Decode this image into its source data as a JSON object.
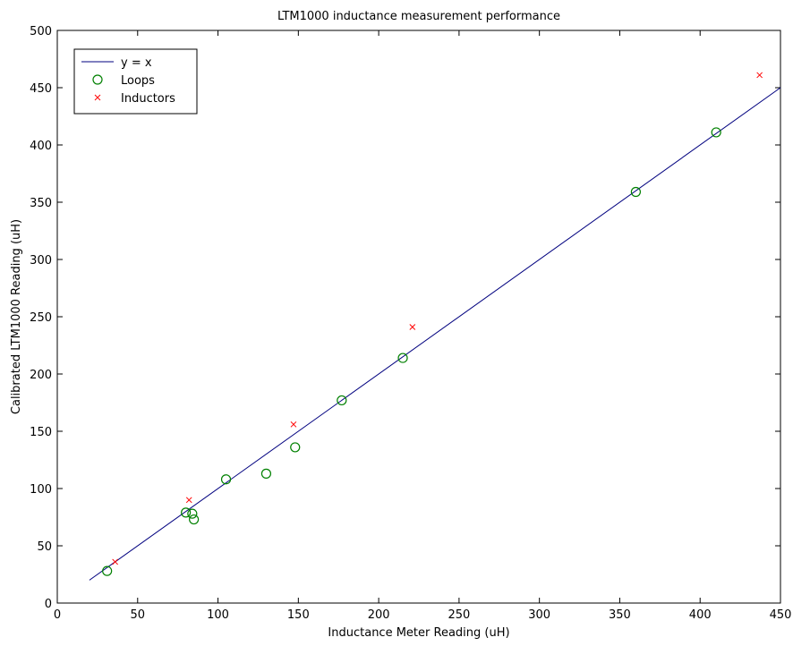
{
  "chart_data": {
    "type": "scatter",
    "title": "LTM1000 inductance measurement performance",
    "xlabel": "Inductance Meter Reading (uH)",
    "ylabel": "Calibrated LTM1000 Reading (uH)",
    "xlim": [
      0,
      450
    ],
    "ylim": [
      0,
      500
    ],
    "xticks": [
      0,
      50,
      100,
      150,
      200,
      250,
      300,
      350,
      400,
      450
    ],
    "yticks": [
      0,
      50,
      100,
      150,
      200,
      250,
      300,
      350,
      400,
      450,
      500
    ],
    "grid": false,
    "legend_position": "top-left",
    "series": [
      {
        "name": "y = x",
        "kind": "line",
        "color": "#00007f",
        "x": [
          20,
          450
        ],
        "y": [
          20,
          450
        ]
      },
      {
        "name": "Loops",
        "kind": "marker-circle",
        "color": "#008000",
        "x": [
          31,
          80,
          84,
          85,
          105,
          130,
          148,
          177,
          215,
          360,
          410
        ],
        "y": [
          28,
          79,
          78,
          73,
          108,
          113,
          136,
          177,
          214,
          359,
          411
        ]
      },
      {
        "name": "Inductors",
        "kind": "marker-x",
        "color": "#ff0000",
        "x": [
          36,
          82,
          147,
          221,
          437
        ],
        "y": [
          36,
          90,
          156,
          241,
          461
        ]
      }
    ]
  }
}
